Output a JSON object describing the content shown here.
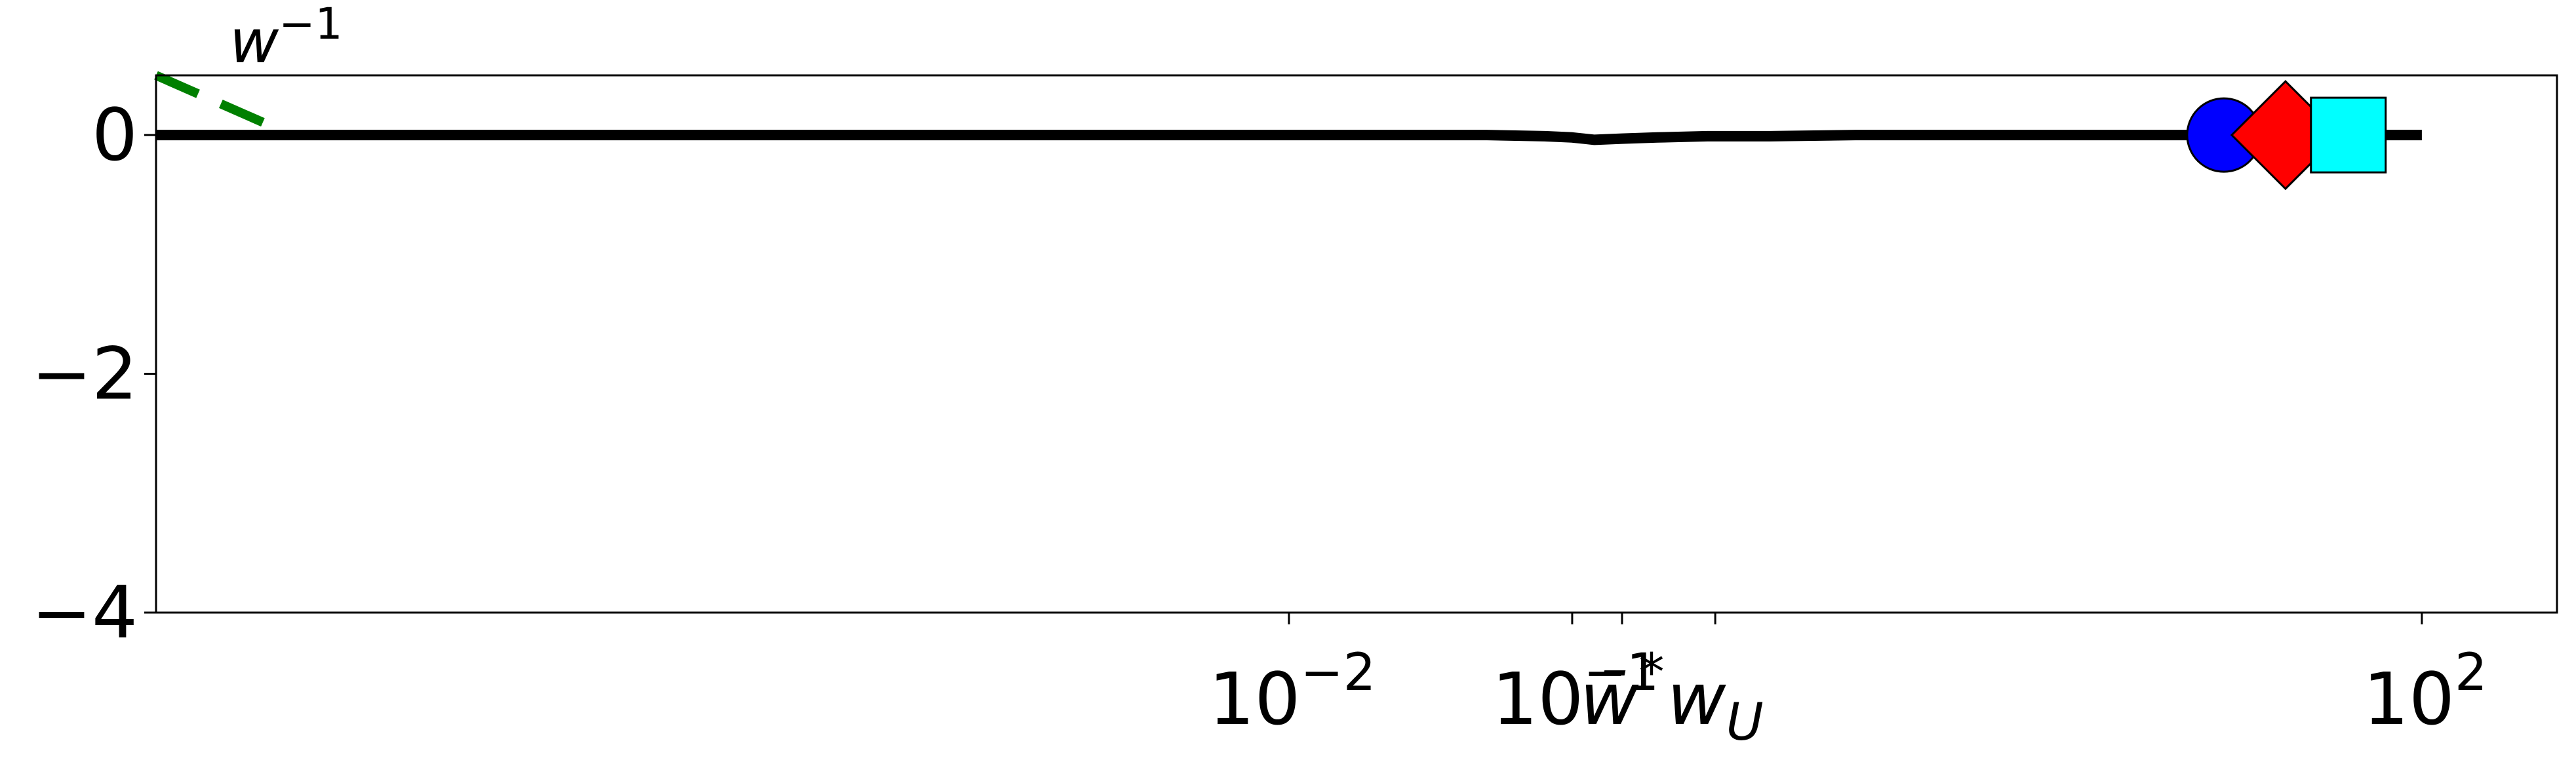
{
  "chart_data": {
    "type": "line",
    "title": "",
    "xlabel": "",
    "ylabel": "",
    "xscale": "log",
    "xlim": [
      1e-06,
      300
    ],
    "ylim": [
      -4,
      0.5
    ],
    "grid": false,
    "colors": {
      "main_line": "#000000",
      "asymptote": "#008000",
      "circle": "#0000ff",
      "diamond": "#ff0000",
      "square": "#00ffff",
      "frame": "#000000"
    },
    "x_ticks": [
      {
        "value": 0.01,
        "label": "10",
        "exp": "−2"
      },
      {
        "value": 0.1,
        "label": "10",
        "exp": "−1"
      },
      {
        "value": 100,
        "label": "10",
        "exp": "2"
      }
    ],
    "x_marker_ticks": [
      {
        "value": 0.15,
        "label": "w̄",
        "sup": "*"
      },
      {
        "value": 0.32,
        "label": "w",
        "sub": "U"
      }
    ],
    "y_ticks": [
      {
        "value": 0,
        "label": "0"
      },
      {
        "value": -2,
        "label": "−2"
      },
      {
        "value": -4,
        "label": "−4"
      }
    ],
    "series": [
      {
        "role": "main",
        "style": "solid",
        "x": [
          1e-06,
          0.001,
          0.05,
          0.08,
          0.1,
          0.12,
          0.15,
          0.2,
          0.3,
          0.5,
          1,
          10,
          100
        ],
        "y": [
          0,
          0,
          0,
          -0.01,
          -0.02,
          -0.04,
          -0.03,
          -0.02,
          -0.01,
          -0.01,
          0,
          0,
          0
        ]
      },
      {
        "role": "asymptote",
        "style": "dashed",
        "label": "w",
        "label_exp": "−1",
        "x": [
          1e-06,
          2.7e-06
        ],
        "y": [
          0.5,
          0.05
        ]
      }
    ],
    "markers": [
      {
        "shape": "circle",
        "x": 20,
        "y": 0
      },
      {
        "shape": "diamond",
        "x": 33,
        "y": 0
      },
      {
        "shape": "square",
        "x": 55,
        "y": 0
      }
    ]
  }
}
